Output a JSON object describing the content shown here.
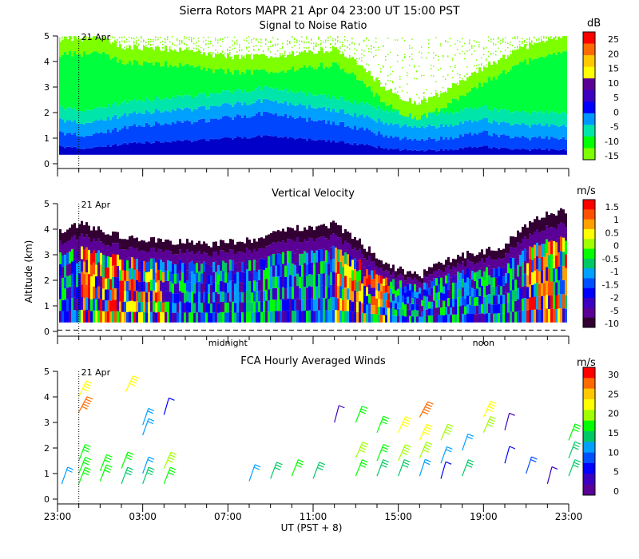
{
  "main_title": "Sierra Rotors   MAPR 21 Apr 04   23:00 UT   15:00   PST",
  "x_axis": {
    "label": "UT  (PST + 8)",
    "tick_labels": [
      "23:00",
      "03:00",
      "07:00",
      "11:00",
      "15:00",
      "19:00",
      "23:00"
    ],
    "tick_hours": [
      0,
      4,
      8,
      12,
      16,
      20,
      24
    ],
    "range_hours": [
      0,
      24
    ],
    "local_markers": [
      {
        "label": "midnight",
        "hour": 8
      },
      {
        "label": "noon",
        "hour": 20
      }
    ]
  },
  "date_marker": {
    "label": "21 Apr",
    "hour": 1
  },
  "y_axis": {
    "label": "Altitude (km)",
    "ticks": [
      0,
      1,
      2,
      3,
      4,
      5
    ],
    "range": [
      0,
      5
    ]
  },
  "chart_data": [
    {
      "type": "heatmap",
      "title": "Signal to Noise Ratio",
      "colorbar_unit": "dB",
      "colorbar_ticks": [
        25,
        20,
        15,
        10,
        5,
        0,
        -5,
        -10,
        -15
      ],
      "colorbar_colors": [
        "#ff0000",
        "#ff6a00",
        "#ffc800",
        "#ffff00",
        "#5a0096",
        "#3c00c0",
        "#0000ff",
        "#0096ff",
        "#00e6aa",
        "#00ff00",
        "#7dff00"
      ],
      "ylim": [
        0,
        5
      ],
      "xlim_hours": [
        0,
        24
      ],
      "top_of_data_km": [
        4.9,
        4.9,
        4.9,
        4.6,
        4.5,
        4.5,
        4.4,
        4.3,
        4.2,
        4.2,
        4.2,
        4.3,
        4.4,
        4.5,
        4.0,
        3.2,
        2.6,
        2.4,
        2.8,
        3.3,
        3.8,
        4.2,
        4.6,
        4.9,
        4.9
      ],
      "strong_layer_top_km": [
        1.2,
        1.1,
        1.2,
        1.4,
        1.5,
        1.6,
        1.6,
        1.7,
        1.8,
        1.9,
        2.0,
        1.8,
        1.7,
        1.6,
        1.4,
        1.2,
        1.0,
        0.9,
        1.0,
        1.1,
        1.2,
        1.1,
        1.0,
        1.0,
        1.0
      ]
    },
    {
      "type": "heatmap",
      "title": "Vertical Velocity",
      "colorbar_unit": "m/s",
      "colorbar_ticks": [
        1.5,
        1,
        0.5,
        0,
        -0.5,
        -1,
        -1.5,
        -2,
        -5,
        -10
      ],
      "colorbar_colors": [
        "#ff0000",
        "#ff5000",
        "#ffa000",
        "#ffff00",
        "#a0ff00",
        "#00ff00",
        "#00c864",
        "#00a0ff",
        "#0050ff",
        "#0000ff",
        "#3c00c0",
        "#5a0096",
        "#320032"
      ],
      "ylim": [
        0,
        5
      ],
      "xlim_hours": [
        0,
        24
      ],
      "top_of_data_km": [
        3.9,
        4.2,
        4.0,
        3.7,
        3.6,
        3.5,
        3.5,
        3.4,
        3.5,
        3.6,
        3.8,
        4.0,
        4.1,
        4.2,
        3.6,
        2.9,
        2.4,
        2.2,
        2.7,
        3.0,
        3.1,
        3.4,
        4.2,
        4.6,
        4.8
      ],
      "updraft_regions": [
        {
          "hour_start": 1.0,
          "hour_end": 5.0
        },
        {
          "hour_start": 13.0,
          "hour_end": 15.5
        },
        {
          "hour_start": 22.0,
          "hour_end": 24.0
        }
      ]
    },
    {
      "type": "barbs",
      "title": "FCA Hourly Averaged Winds",
      "colorbar_unit": "m/s",
      "colorbar_ticks": [
        30,
        25,
        20,
        15,
        10,
        5,
        0
      ],
      "colorbar_colors": [
        "#ff0000",
        "#ff6a00",
        "#ffc800",
        "#ffff00",
        "#a0ff00",
        "#00ff00",
        "#00c864",
        "#00a0ff",
        "#0050ff",
        "#0000ff",
        "#3c00c0",
        "#5a0096"
      ],
      "ylim": [
        0,
        5
      ],
      "xlim_hours": [
        0,
        24
      ],
      "barbs": [
        {
          "hour": 0.2,
          "alt": 0.6,
          "speed": 12
        },
        {
          "hour": 1.0,
          "alt": 0.6,
          "speed": 15
        },
        {
          "hour": 1.0,
          "alt": 1.0,
          "speed": 16
        },
        {
          "hour": 1.0,
          "alt": 1.5,
          "speed": 15
        },
        {
          "hour": 1.0,
          "alt": 3.4,
          "speed": 27
        },
        {
          "hour": 1.0,
          "alt": 4.0,
          "speed": 22
        },
        {
          "hour": 2.0,
          "alt": 0.7,
          "speed": 15
        },
        {
          "hour": 2.0,
          "alt": 1.1,
          "speed": 16
        },
        {
          "hour": 3.0,
          "alt": 0.6,
          "speed": 14
        },
        {
          "hour": 3.0,
          "alt": 1.2,
          "speed": 15
        },
        {
          "hour": 3.2,
          "alt": 4.2,
          "speed": 22
        },
        {
          "hour": 4.0,
          "alt": 0.6,
          "speed": 13
        },
        {
          "hour": 4.0,
          "alt": 1.0,
          "speed": 12
        },
        {
          "hour": 4.0,
          "alt": 2.5,
          "speed": 12
        },
        {
          "hour": 4.0,
          "alt": 2.9,
          "speed": 11
        },
        {
          "hour": 5.0,
          "alt": 0.6,
          "speed": 15
        },
        {
          "hour": 5.0,
          "alt": 1.2,
          "speed": 18
        },
        {
          "hour": 5.0,
          "alt": 3.3,
          "speed": 6
        },
        {
          "hour": 9.0,
          "alt": 0.7,
          "speed": 11
        },
        {
          "hour": 10.0,
          "alt": 0.8,
          "speed": 14
        },
        {
          "hour": 11.0,
          "alt": 0.9,
          "speed": 15
        },
        {
          "hour": 12.0,
          "alt": 0.8,
          "speed": 14
        },
        {
          "hour": 13.0,
          "alt": 3.0,
          "speed": 4
        },
        {
          "hour": 14.0,
          "alt": 0.9,
          "speed": 16
        },
        {
          "hour": 14.0,
          "alt": 1.6,
          "speed": 18
        },
        {
          "hour": 14.0,
          "alt": 3.0,
          "speed": 15
        },
        {
          "hour": 15.0,
          "alt": 0.9,
          "speed": 14
        },
        {
          "hour": 15.0,
          "alt": 1.5,
          "speed": 16
        },
        {
          "hour": 15.0,
          "alt": 2.6,
          "speed": 15
        },
        {
          "hour": 16.0,
          "alt": 0.9,
          "speed": 13
        },
        {
          "hour": 16.0,
          "alt": 1.5,
          "speed": 19
        },
        {
          "hour": 16.0,
          "alt": 2.6,
          "speed": 20
        },
        {
          "hour": 17.0,
          "alt": 0.9,
          "speed": 10
        },
        {
          "hour": 17.0,
          "alt": 1.6,
          "speed": 18
        },
        {
          "hour": 17.0,
          "alt": 2.3,
          "speed": 20
        },
        {
          "hour": 17.0,
          "alt": 3.2,
          "speed": 26
        },
        {
          "hour": 18.0,
          "alt": 0.8,
          "speed": 6
        },
        {
          "hour": 18.0,
          "alt": 1.4,
          "speed": 12
        },
        {
          "hour": 18.0,
          "alt": 2.3,
          "speed": 18
        },
        {
          "hour": 19.0,
          "alt": 0.9,
          "speed": 14
        },
        {
          "hour": 19.0,
          "alt": 1.9,
          "speed": 11
        },
        {
          "hour": 20.0,
          "alt": 2.6,
          "speed": 19
        },
        {
          "hour": 20.0,
          "alt": 3.2,
          "speed": 20
        },
        {
          "hour": 21.0,
          "alt": 1.4,
          "speed": 5
        },
        {
          "hour": 21.0,
          "alt": 2.7,
          "speed": 4
        },
        {
          "hour": 22.0,
          "alt": 1.0,
          "speed": 9
        },
        {
          "hour": 23.0,
          "alt": 0.6,
          "speed": 4
        },
        {
          "hour": 24.0,
          "alt": 0.9,
          "speed": 14
        },
        {
          "hour": 24.0,
          "alt": 1.6,
          "speed": 14
        },
        {
          "hour": 24.0,
          "alt": 2.3,
          "speed": 15
        }
      ]
    }
  ]
}
